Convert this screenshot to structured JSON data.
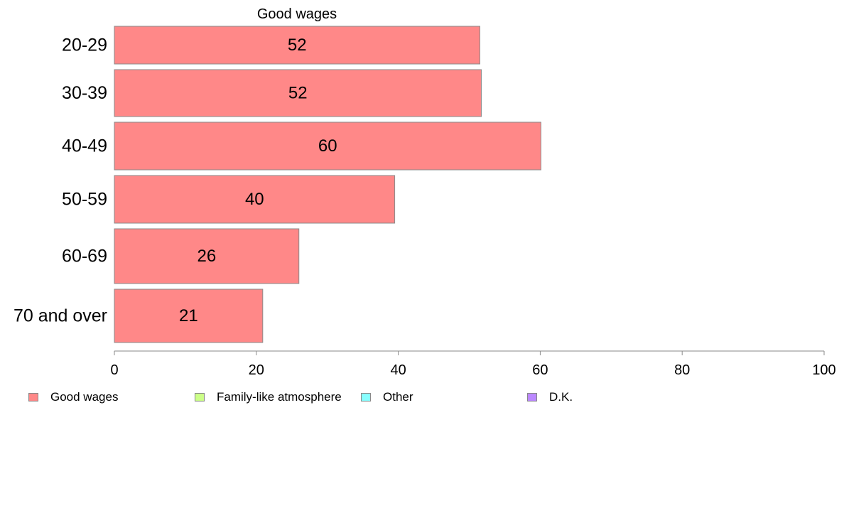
{
  "chart_data": {
    "type": "bar",
    "orientation": "horizontal",
    "title": "Good wages",
    "xlabel": "",
    "ylabel": "",
    "xlim": [
      0,
      100
    ],
    "x_ticks": [
      "0",
      "20",
      "40",
      "60",
      "80",
      "100"
    ],
    "categories": [
      "20-29",
      "30-39",
      "40-49",
      "50-59",
      "60-69",
      "70 and over"
    ],
    "series": [
      {
        "name": "Good wages",
        "values": [
          51.5,
          51.7,
          60.1,
          39.5,
          26.0,
          20.9
        ],
        "labels": [
          "52",
          "52",
          "60",
          "40",
          "26",
          "21"
        ],
        "color": "#ff8888"
      }
    ],
    "grid": false,
    "legend": {
      "position": "bottom-left",
      "entries": [
        {
          "label": "Good wages",
          "color": "#ff8888"
        },
        {
          "label": "Family-like atmosphere",
          "color": "#ccff88"
        },
        {
          "label": "Other",
          "color": "#88ffff"
        },
        {
          "label": "D.K.",
          "color": "#bb88ff"
        }
      ]
    }
  }
}
